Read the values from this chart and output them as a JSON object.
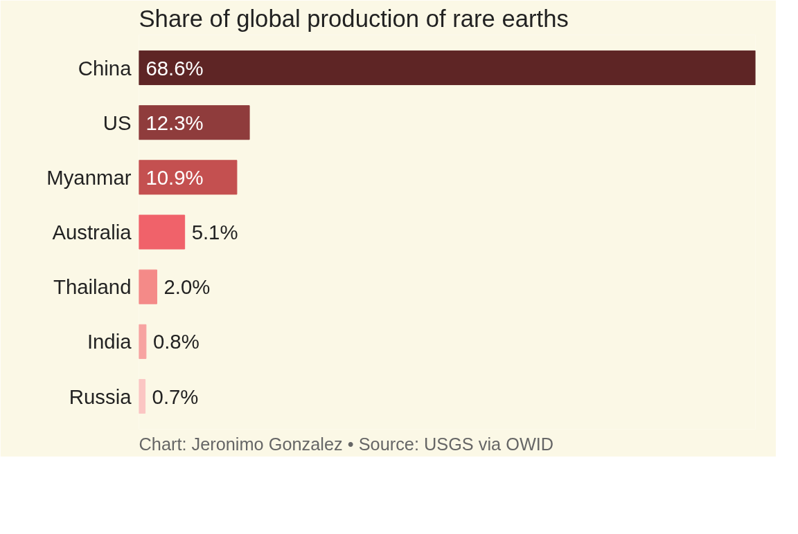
{
  "chart_data": {
    "type": "bar",
    "orientation": "horizontal",
    "title": "Share of global production of rare earths",
    "categories": [
      "China",
      "US",
      "Myanmar",
      "Australia",
      "Thailand",
      "India",
      "Russia"
    ],
    "values": [
      68.6,
      12.3,
      10.9,
      5.1,
      2.0,
      0.8,
      0.7
    ],
    "colors": [
      "#5e2525",
      "#8f3c3c",
      "#c45050",
      "#f0626a",
      "#f48a88",
      "#f7a3a1",
      "#fbc6c3"
    ],
    "value_labels": [
      "68.6%",
      "12.3%",
      "10.9%",
      "5.1%",
      "2.0%",
      "0.8%",
      "0.7%"
    ],
    "annotations": [
      "Chart: Jeronimo Gonzalez • Source: USGS via OWID"
    ]
  }
}
